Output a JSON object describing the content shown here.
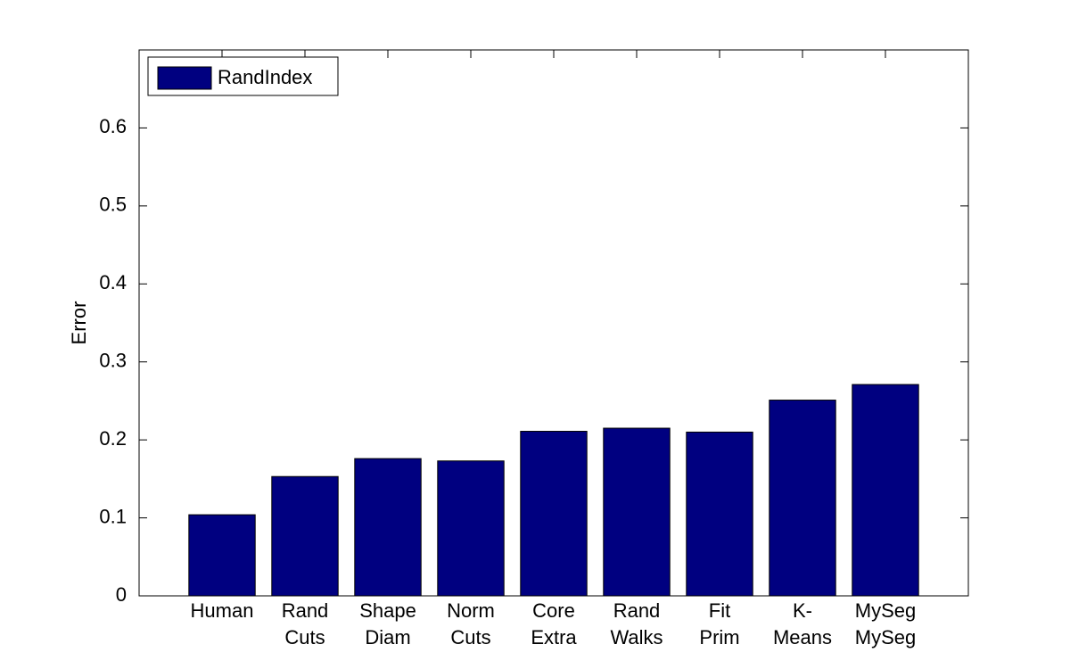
{
  "chart_data": {
    "type": "bar",
    "ylabel": "Error",
    "categories": [
      [
        "Human"
      ],
      [
        "Rand",
        "Cuts"
      ],
      [
        "Shape",
        "Diam"
      ],
      [
        "Norm",
        "Cuts"
      ],
      [
        "Core",
        "Extra"
      ],
      [
        "Rand",
        "Walks"
      ],
      [
        "Fit",
        "Prim"
      ],
      [
        "K-",
        "Means"
      ],
      [
        "MySeg",
        "MySeg"
      ]
    ],
    "series": [
      {
        "name": "RandIndex",
        "color": "#000080",
        "values": [
          0.104,
          0.153,
          0.176,
          0.173,
          0.211,
          0.215,
          0.21,
          0.251,
          0.271
        ]
      }
    ],
    "ylim": [
      0,
      0.7
    ],
    "yticks": [
      0,
      0.1,
      0.2,
      0.3,
      0.4,
      0.5,
      0.6
    ],
    "legend": "upper-left",
    "grid": false
  }
}
